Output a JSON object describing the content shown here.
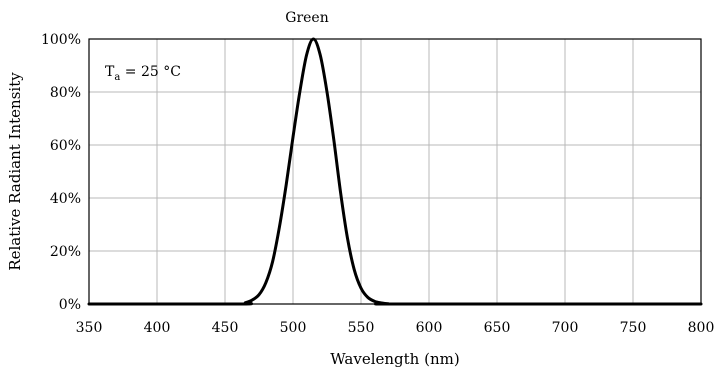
{
  "chart_data": {
    "type": "line",
    "title": "Green",
    "xlabel": "Wavelength (nm)",
    "ylabel": "Relative Radiant Intensity",
    "xlim": [
      350,
      800
    ],
    "ylim": [
      0,
      100
    ],
    "x_ticks": [
      350,
      400,
      450,
      500,
      550,
      600,
      650,
      700,
      750,
      800
    ],
    "x_tick_labels": [
      "350",
      "400",
      "450",
      "500",
      "550",
      "600",
      "650",
      "700",
      "750",
      "800"
    ],
    "y_ticks": [
      0,
      20,
      40,
      60,
      80,
      100
    ],
    "y_tick_labels": [
      "0%",
      "20%",
      "40%",
      "60%",
      "80%",
      "100%"
    ],
    "grid": true,
    "legend": "none",
    "annotation": {
      "main": "T",
      "subscript": "a",
      "rest": " = 25 °C",
      "placement": "top-left"
    },
    "series": [
      {
        "color": "#000000",
        "x": [
          350,
          460,
          465,
          470,
          475,
          480,
          485,
          490,
          495,
          500,
          505,
          510,
          515,
          520,
          525,
          530,
          535,
          540,
          545,
          550,
          555,
          560,
          565,
          570,
          580,
          800
        ],
        "y": [
          0,
          0,
          0.5,
          1.5,
          3.5,
          8,
          16,
          29,
          45,
          63,
          80,
          94,
          100,
          94,
          80,
          62,
          42,
          25,
          13,
          6,
          2.5,
          1,
          0.4,
          0.1,
          0,
          0
        ]
      }
    ]
  }
}
